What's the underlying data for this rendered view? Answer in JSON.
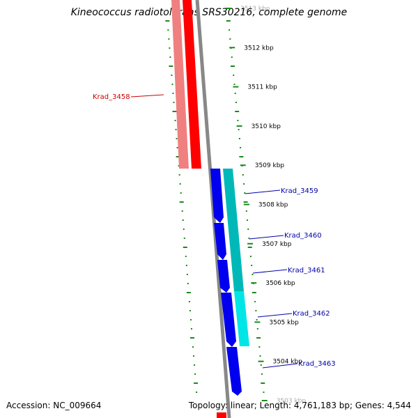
{
  "title": "Kineococcus radiotolerans SRS30216, complete genome",
  "accession": "Accession: NC_009664",
  "summary": "Topology: linear; Length: 4,761,183 bp; Genes: 4,544",
  "colors": {
    "backbone": "#888888",
    "tick": "#1a8a1a",
    "reverse_strand_light": "#f08080",
    "reverse_strand": "#ff0000",
    "forward_strand": "#0000ee",
    "forward_strand_light": "#00cccc",
    "label_red": "#cc0000",
    "label_blue": "#0000aa"
  },
  "ruler": {
    "ticks": [
      "3513 kbp",
      "3512 kbp",
      "3511 kbp",
      "3510 kbp",
      "3509 kbp",
      "3508 kbp",
      "3507 kbp",
      "3506 kbp",
      "3505 kbp",
      "3504 kbp",
      "3503 kbp"
    ]
  },
  "genes": [
    {
      "label": "Krad_3458",
      "strand": "reverse"
    },
    {
      "label": "Krad_3459",
      "strand": "forward"
    },
    {
      "label": "Krad_3460",
      "strand": "forward"
    },
    {
      "label": "Krad_3461",
      "strand": "forward"
    },
    {
      "label": "Krad_3462",
      "strand": "forward"
    },
    {
      "label": "Krad_3463",
      "strand": "forward"
    }
  ]
}
